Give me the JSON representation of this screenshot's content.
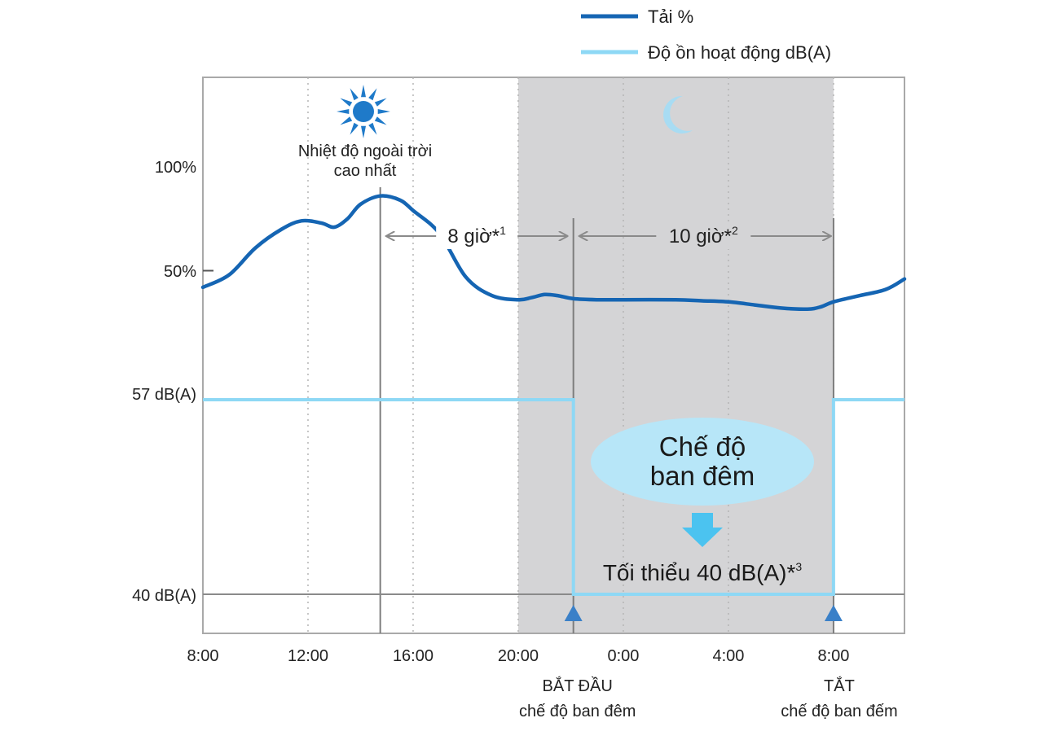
{
  "chart_data": {
    "type": "line",
    "legend": [
      {
        "label": "Tải %",
        "color": "#1565b3"
      },
      {
        "label": "Độ ồn hoạt động dB(A)",
        "color": "#8ed8f5"
      }
    ],
    "x_ticks": [
      "8:00",
      "12:00",
      "16:00",
      "20:00",
      "0:00",
      "4:00",
      "8:00"
    ],
    "y_ticks": {
      "load_100": "100%",
      "load_50": "50%",
      "db_57": "57 dB(A)",
      "db_40": "40 dB(A)"
    },
    "x_range_hours": [
      8,
      34.7
    ],
    "series": [
      {
        "name": "Tải %",
        "unit": "%",
        "x_hours": [
          8,
          9,
          10,
          11,
          11.75,
          12.5,
          13,
          13.5,
          14,
          14.75,
          15.5,
          16,
          17,
          18,
          19,
          20,
          20.5,
          21,
          21.5,
          22.1,
          23,
          24,
          26,
          27,
          28,
          29,
          30,
          31,
          31.5,
          32,
          33,
          34,
          34.7
        ],
        "values": [
          42,
          48,
          61,
          70,
          74,
          73,
          71,
          75,
          82,
          86,
          84,
          79,
          68,
          47,
          38,
          36,
          37,
          38.5,
          38,
          36.5,
          36,
          36,
          36,
          35.5,
          35,
          33.5,
          32,
          31.5,
          32.5,
          35,
          38,
          41,
          46
        ]
      },
      {
        "name": "Độ ồn hoạt động dB(A)",
        "unit": "dB(A)",
        "x_hours": [
          8,
          22.1,
          22.1,
          32,
          32,
          34.7
        ],
        "values": [
          57,
          57,
          40,
          40,
          57,
          57
        ]
      }
    ],
    "night_shading_hours": [
      20,
      32
    ],
    "annotations": {
      "peak_label_line1": "Nhiệt độ ngoài trời",
      "peak_label_line2": "cao nhất",
      "peak_hour": 14.75,
      "duration1": {
        "text": "8 giờ*",
        "sup": "1"
      },
      "duration2": {
        "text": "10 giờ*",
        "sup": "2"
      },
      "night_mode_line1": "Chế độ",
      "night_mode_line2": "ban đêm",
      "minimum": {
        "text": "Tối thiểu 40 dB(A)*",
        "sup": "3"
      },
      "start_hour": 22.1,
      "start_line1": "BẮT ĐẦU",
      "start_line2": "chế độ ban đêm",
      "end_hour": 32,
      "end_line1": "TẮT",
      "end_line2": "chế độ ban đếm"
    },
    "colors": {
      "load": "#1565b3",
      "noise": "#8ed8f5",
      "night_bg": "#d4d4d6",
      "ellipse": "#b7e6f8",
      "arrow": "#4bc3f0",
      "marker": "#3a80c8",
      "sun": "#1f7ac9",
      "moon": "#a8dcf3"
    }
  }
}
